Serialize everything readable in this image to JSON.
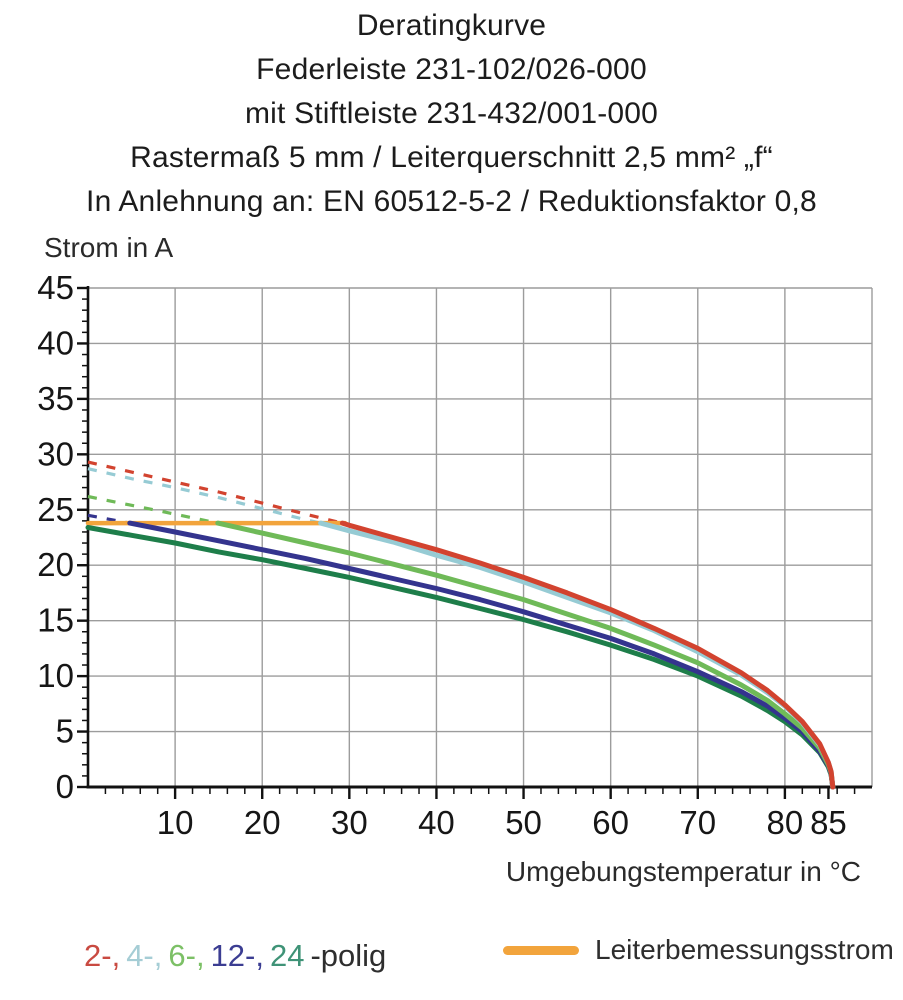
{
  "title": {
    "lines": [
      "Deratingkurve",
      "Federleiste 231-102/026-000",
      "mit Stiftleiste 231-432/001-000",
      "Rastermaß 5 mm / Leiterquerschnitt 2,5 mm² „f“",
      "In Anlehnung an: EN 60512-5-2 / Reduktionsfaktor 0,8"
    ]
  },
  "chart_data": {
    "type": "line",
    "ylabel": "Strom in A",
    "xlabel": "Umgebungstemperatur in °C",
    "xlim": [
      0,
      90
    ],
    "ylim": [
      0,
      45
    ],
    "x_major_ticks": [
      10,
      20,
      30,
      40,
      50,
      60,
      70,
      80,
      85
    ],
    "x_minor_step": 2,
    "y_major_ticks": [
      0,
      5,
      10,
      15,
      20,
      25,
      30,
      35,
      40,
      45
    ],
    "y_minor_step": 1,
    "grid": {
      "color": "#9c9c9c",
      "x_lines": [
        10,
        20,
        30,
        40,
        50,
        60,
        70,
        80,
        90
      ],
      "y_lines": [
        5,
        10,
        15,
        20,
        25,
        30,
        35,
        40,
        45
      ]
    },
    "axis_color": "#111111",
    "cap_line": {
      "name": "Leiterbemessungsstrom",
      "color": "#f2a43c",
      "value": 23.8,
      "x_range": [
        0,
        29.5
      ]
    },
    "series": [
      {
        "name": "2-polig",
        "color": "#d2432f",
        "dashed_points": [
          [
            0,
            29.3
          ],
          [
            5,
            28.4
          ],
          [
            10,
            27.5
          ],
          [
            15,
            26.6
          ],
          [
            20,
            25.6
          ],
          [
            25,
            24.6
          ],
          [
            29.2,
            23.8
          ]
        ],
        "solid_points": [
          [
            29.2,
            23.8
          ],
          [
            30,
            23.6
          ],
          [
            35,
            22.5
          ],
          [
            40,
            21.4
          ],
          [
            45,
            20.2
          ],
          [
            50,
            18.9
          ],
          [
            55,
            17.5
          ],
          [
            60,
            16.0
          ],
          [
            65,
            14.3
          ],
          [
            70,
            12.5
          ],
          [
            75,
            10.3
          ],
          [
            78,
            8.7
          ],
          [
            80,
            7.4
          ],
          [
            82,
            5.9
          ],
          [
            84,
            3.9
          ],
          [
            85,
            2.2
          ],
          [
            85.3,
            1.4
          ],
          [
            85.5,
            0
          ]
        ]
      },
      {
        "name": "4-polig",
        "color": "#96cbd4",
        "dashed_points": [
          [
            0,
            28.7
          ],
          [
            5,
            27.8
          ],
          [
            10,
            27.0
          ],
          [
            15,
            26.1
          ],
          [
            20,
            25.1
          ],
          [
            25,
            24.1
          ],
          [
            26.7,
            23.8
          ]
        ],
        "solid_points": [
          [
            26.7,
            23.8
          ],
          [
            30,
            23.1
          ],
          [
            35,
            22.1
          ],
          [
            40,
            20.9
          ],
          [
            45,
            19.8
          ],
          [
            50,
            18.5
          ],
          [
            55,
            17.1
          ],
          [
            60,
            15.7
          ],
          [
            65,
            14.1
          ],
          [
            70,
            12.2
          ],
          [
            75,
            10.1
          ],
          [
            78,
            8.5
          ],
          [
            80,
            7.3
          ],
          [
            82,
            5.8
          ],
          [
            84,
            3.8
          ],
          [
            85,
            2.2
          ],
          [
            85.3,
            1.4
          ],
          [
            85.5,
            0
          ]
        ]
      },
      {
        "name": "6-polig",
        "color": "#6fba58",
        "dashed_points": [
          [
            0,
            26.2
          ],
          [
            5,
            25.4
          ],
          [
            10,
            24.6
          ],
          [
            14.9,
            23.8
          ]
        ],
        "solid_points": [
          [
            14.9,
            23.8
          ],
          [
            20,
            22.9
          ],
          [
            25,
            22.0
          ],
          [
            30,
            21.1
          ],
          [
            35,
            20.1
          ],
          [
            40,
            19.1
          ],
          [
            45,
            18.0
          ],
          [
            50,
            16.9
          ],
          [
            55,
            15.6
          ],
          [
            60,
            14.3
          ],
          [
            65,
            12.8
          ],
          [
            70,
            11.2
          ],
          [
            75,
            9.2
          ],
          [
            78,
            7.8
          ],
          [
            80,
            6.6
          ],
          [
            82,
            5.3
          ],
          [
            84,
            3.5
          ],
          [
            85,
            2.0
          ],
          [
            85.3,
            1.3
          ],
          [
            85.5,
            0
          ]
        ]
      },
      {
        "name": "12-polig",
        "color": "#34348e",
        "dashed_points": [
          [
            0,
            24.5
          ],
          [
            4.8,
            23.8
          ]
        ],
        "solid_points": [
          [
            4.8,
            23.8
          ],
          [
            10,
            23.0
          ],
          [
            15,
            22.2
          ],
          [
            20,
            21.4
          ],
          [
            25,
            20.6
          ],
          [
            30,
            19.7
          ],
          [
            35,
            18.8
          ],
          [
            40,
            17.9
          ],
          [
            45,
            16.9
          ],
          [
            50,
            15.8
          ],
          [
            55,
            14.6
          ],
          [
            60,
            13.4
          ],
          [
            65,
            12.0
          ],
          [
            70,
            10.4
          ],
          [
            75,
            8.6
          ],
          [
            78,
            7.3
          ],
          [
            80,
            6.2
          ],
          [
            82,
            5.0
          ],
          [
            84,
            3.2
          ],
          [
            85,
            1.9
          ],
          [
            85.3,
            1.2
          ],
          [
            85.5,
            0
          ]
        ]
      },
      {
        "name": "24-polig",
        "color": "#1e7e4a",
        "solid_points": [
          [
            0,
            23.4
          ],
          [
            5,
            22.7
          ],
          [
            10,
            22.0
          ],
          [
            15,
            21.2
          ],
          [
            20,
            20.5
          ],
          [
            25,
            19.7
          ],
          [
            30,
            18.9
          ],
          [
            35,
            18.0
          ],
          [
            40,
            17.1
          ],
          [
            45,
            16.1
          ],
          [
            50,
            15.1
          ],
          [
            55,
            14.0
          ],
          [
            60,
            12.8
          ],
          [
            65,
            11.5
          ],
          [
            70,
            10.0
          ],
          [
            75,
            8.2
          ],
          [
            78,
            6.9
          ],
          [
            80,
            5.9
          ],
          [
            82,
            4.7
          ],
          [
            84,
            3.1
          ],
          [
            85,
            1.8
          ],
          [
            85.3,
            1.1
          ],
          [
            85.5,
            0
          ]
        ]
      }
    ]
  },
  "legend_poles": {
    "items": [
      {
        "label": "2-,",
        "color": "#c94a41"
      },
      {
        "label": "4-,",
        "color": "#a5cdd5"
      },
      {
        "label": "6-,",
        "color": "#7cc066"
      },
      {
        "label": "12-,",
        "color": "#3b3d92"
      },
      {
        "label": "24",
        "color": "#3f9377"
      }
    ],
    "suffix": "-polig"
  },
  "legend_cap": {
    "label": "Leiterbemessungsstrom",
    "color": "#f2a43c"
  }
}
